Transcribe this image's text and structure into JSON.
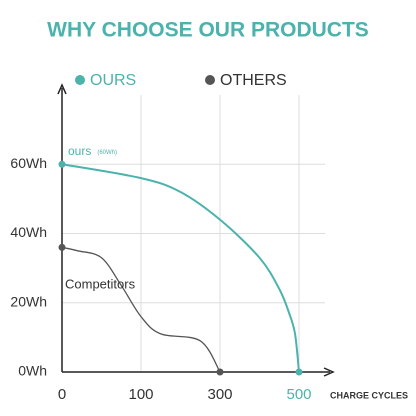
{
  "chart_data": {
    "type": "line",
    "title": "WHY CHOOSE OUR PRODUCTS",
    "title_color": "#4bb3ac",
    "series": [
      {
        "name": "OURS",
        "color": "#4bb3ac",
        "x": [
          0,
          100,
          200,
          300,
          400,
          450,
          475,
          490,
          500
        ],
        "values": [
          60,
          56,
          52,
          44,
          33,
          24,
          17,
          11,
          0
        ]
      },
      {
        "name": "OTHERS",
        "color": "#555555",
        "x": [
          0,
          20,
          50,
          75,
          100,
          150,
          250,
          300
        ],
        "values": [
          36,
          35,
          33,
          25,
          16,
          11,
          9,
          0
        ]
      }
    ],
    "annotations": [
      {
        "text": "ours",
        "sub": "(60Wh)",
        "color": "#4bb3ac"
      },
      {
        "text": "Competitors",
        "color": "#333333"
      }
    ],
    "xlabel": "CHARGE CYCLES",
    "xlim": [
      0,
      570
    ],
    "xticks": [
      0,
      100,
      300,
      500
    ],
    "xtick_colors": [
      "#333333",
      "#333333",
      "#333333",
      "#4bb3ac"
    ],
    "ylim": [
      0,
      80
    ],
    "yticks": [
      {
        "value": 0,
        "label": "0Wh"
      },
      {
        "value": 20,
        "label": "20Wh"
      },
      {
        "value": 40,
        "label": "40Wh"
      },
      {
        "value": 60,
        "label": "60Wh"
      }
    ],
    "grid": true,
    "legend": "top"
  }
}
